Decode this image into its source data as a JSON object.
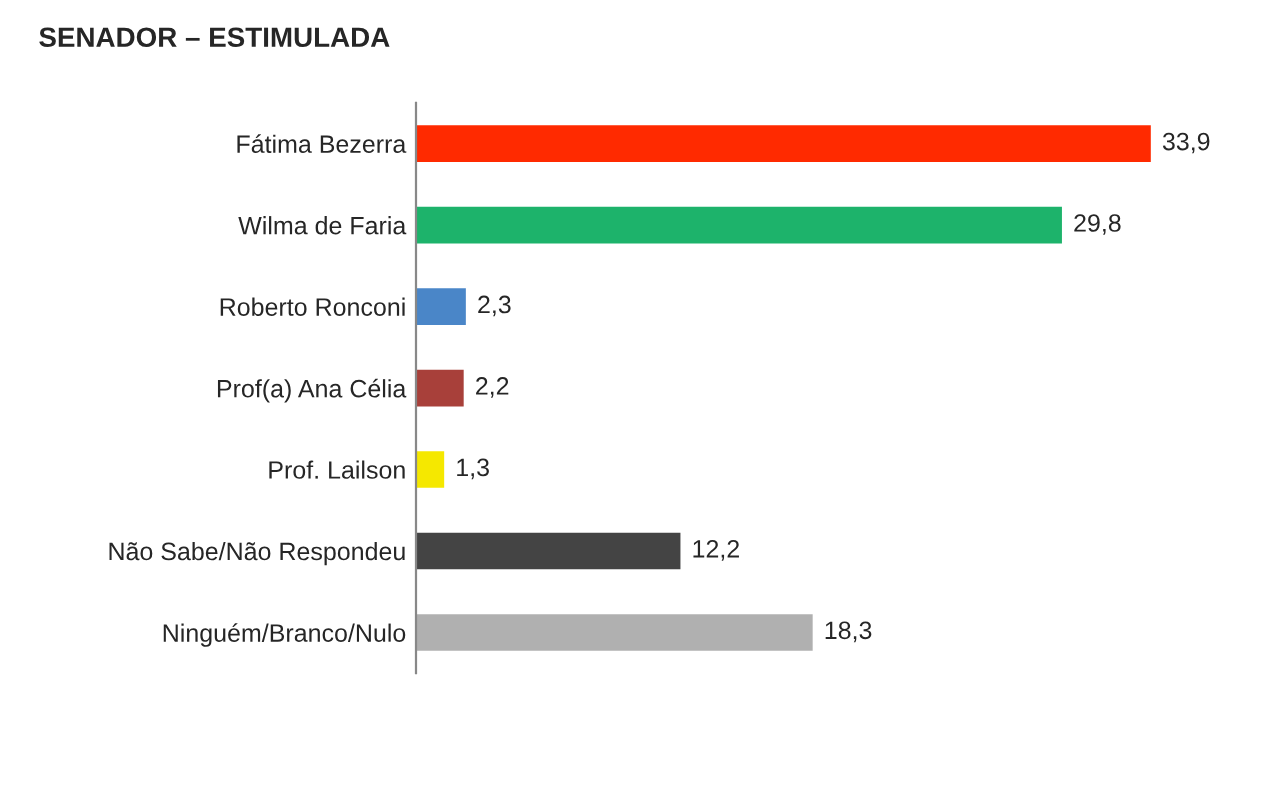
{
  "chart_data": {
    "type": "bar",
    "orientation": "horizontal",
    "title": "SENADOR – ESTIMULADA",
    "categories": [
      "Fátima Bezerra",
      "Wilma de Faria",
      "Roberto Ronconi",
      "Prof(a) Ana Célia",
      "Prof. Lailson",
      "Não Sabe/Não Respondeu",
      "Ninguém/Branco/Nulo"
    ],
    "values": [
      33.9,
      29.8,
      2.3,
      2.2,
      1.3,
      12.2,
      18.3
    ],
    "colors": [
      "#ff2a00",
      "#1db36b",
      "#4a86c8",
      "#a8403a",
      "#f5e800",
      "#444444",
      "#b0b0b0"
    ],
    "value_labels": [
      "33,9",
      "29,8",
      "2,3",
      "2,2",
      "1,3",
      "12,2",
      "18,3"
    ],
    "grid": false,
    "legend": false
  }
}
